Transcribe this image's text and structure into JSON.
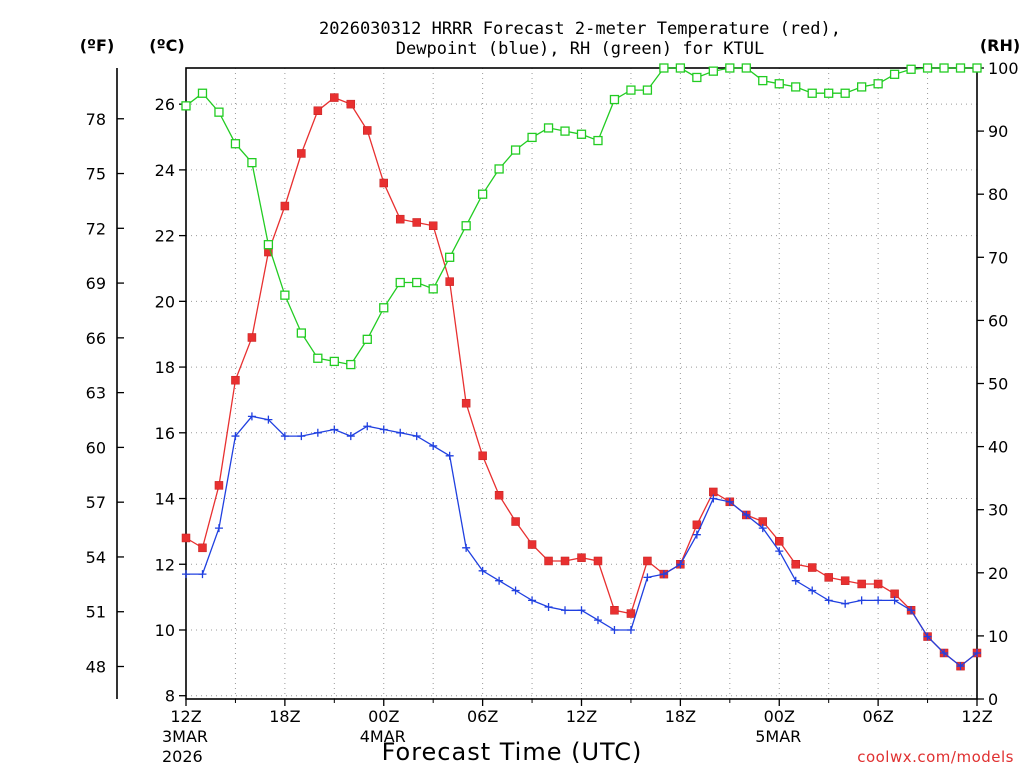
{
  "title_line1": "2026030312 HRRR Forecast 2-meter Temperature (red),",
  "title_line2": "Dewpoint (blue), RH (green) for KTUL",
  "credit": "coolwx.com/models",
  "chart_data": {
    "type": "line",
    "title": "2026030312 HRRR Forecast 2-meter Temperature (red), Dewpoint (blue), RH (green) for KTUL",
    "xlabel": "Forecast Time (UTC)",
    "x_range_hours": [
      0,
      48
    ],
    "x_ticks": [
      {
        "h": 0,
        "label": "12Z",
        "sub1": "3MAR",
        "sub2": "2026"
      },
      {
        "h": 6,
        "label": "18Z",
        "sub1": "",
        "sub2": ""
      },
      {
        "h": 12,
        "label": "00Z",
        "sub1": "4MAR",
        "sub2": ""
      },
      {
        "h": 18,
        "label": "06Z",
        "sub1": "",
        "sub2": ""
      },
      {
        "h": 24,
        "label": "12Z",
        "sub1": "",
        "sub2": ""
      },
      {
        "h": 30,
        "label": "18Z",
        "sub1": "",
        "sub2": ""
      },
      {
        "h": 36,
        "label": "00Z",
        "sub1": "5MAR",
        "sub2": ""
      },
      {
        "h": 42,
        "label": "06Z",
        "sub1": "",
        "sub2": ""
      },
      {
        "h": 48,
        "label": "12Z",
        "sub1": "",
        "sub2": ""
      }
    ],
    "y_left_c": {
      "unit": "(ºC)",
      "range": [
        7.9,
        27.1
      ],
      "ticks": [
        8,
        10,
        12,
        14,
        16,
        18,
        20,
        22,
        24,
        26
      ]
    },
    "y_left_f": {
      "unit": "(ºF)",
      "ticks": [
        48,
        51,
        54,
        57,
        60,
        63,
        66,
        69,
        72,
        75,
        78
      ]
    },
    "y_right_rh": {
      "unit": "(RH)",
      "range": [
        0,
        100
      ],
      "ticks": [
        0,
        10,
        20,
        30,
        40,
        50,
        60,
        70,
        80,
        90,
        100
      ]
    },
    "grid": true,
    "series": [
      {
        "color": "#e83030",
        "marker": "filled-square",
        "axis": "celsius",
        "values": [
          12.8,
          12.5,
          14.4,
          17.6,
          18.9,
          21.5,
          22.9,
          24.5,
          25.8,
          26.2,
          26.0,
          25.2,
          23.6,
          22.5,
          22.4,
          22.3,
          20.6,
          16.9,
          15.3,
          14.1,
          13.3,
          12.6,
          12.1,
          12.1,
          12.2,
          12.1,
          10.6,
          10.5,
          12.1,
          11.7,
          12.0,
          13.2,
          14.2,
          13.9,
          13.5,
          13.3,
          12.7,
          12.0,
          11.9,
          11.6,
          11.5,
          11.4,
          11.4,
          11.1,
          10.6,
          9.8,
          9.3,
          8.9,
          9.3
        ]
      },
      {
        "color": "#2040e0",
        "marker": "plus",
        "axis": "celsius",
        "values": [
          11.7,
          11.7,
          13.1,
          15.9,
          16.5,
          16.4,
          15.9,
          15.9,
          16.0,
          16.1,
          15.9,
          16.2,
          16.1,
          16.0,
          15.9,
          15.6,
          15.3,
          12.5,
          11.8,
          11.5,
          11.2,
          10.9,
          10.7,
          10.6,
          10.6,
          10.3,
          10.0,
          10.0,
          11.6,
          11.7,
          12.0,
          12.9,
          14.0,
          13.9,
          13.5,
          13.1,
          12.4,
          11.5,
          11.2,
          10.9,
          10.8,
          10.9,
          10.9,
          10.9,
          10.6,
          9.8,
          9.3,
          8.9,
          9.3
        ]
      },
      {
        "color": "#22cc22",
        "marker": "open-square",
        "axis": "rh",
        "values": [
          94,
          96,
          93,
          88,
          85,
          72,
          64,
          58,
          54,
          53.5,
          53,
          57,
          62,
          66,
          66,
          65,
          70,
          75,
          80,
          84,
          87,
          89,
          90.5,
          90,
          89.5,
          88.5,
          95,
          96.5,
          96.5,
          100,
          100,
          98.5,
          99.5,
          100,
          100,
          98,
          97.5,
          97,
          96,
          96,
          96,
          97,
          97.5,
          99,
          99.8,
          100,
          100,
          100,
          100
        ]
      }
    ]
  }
}
